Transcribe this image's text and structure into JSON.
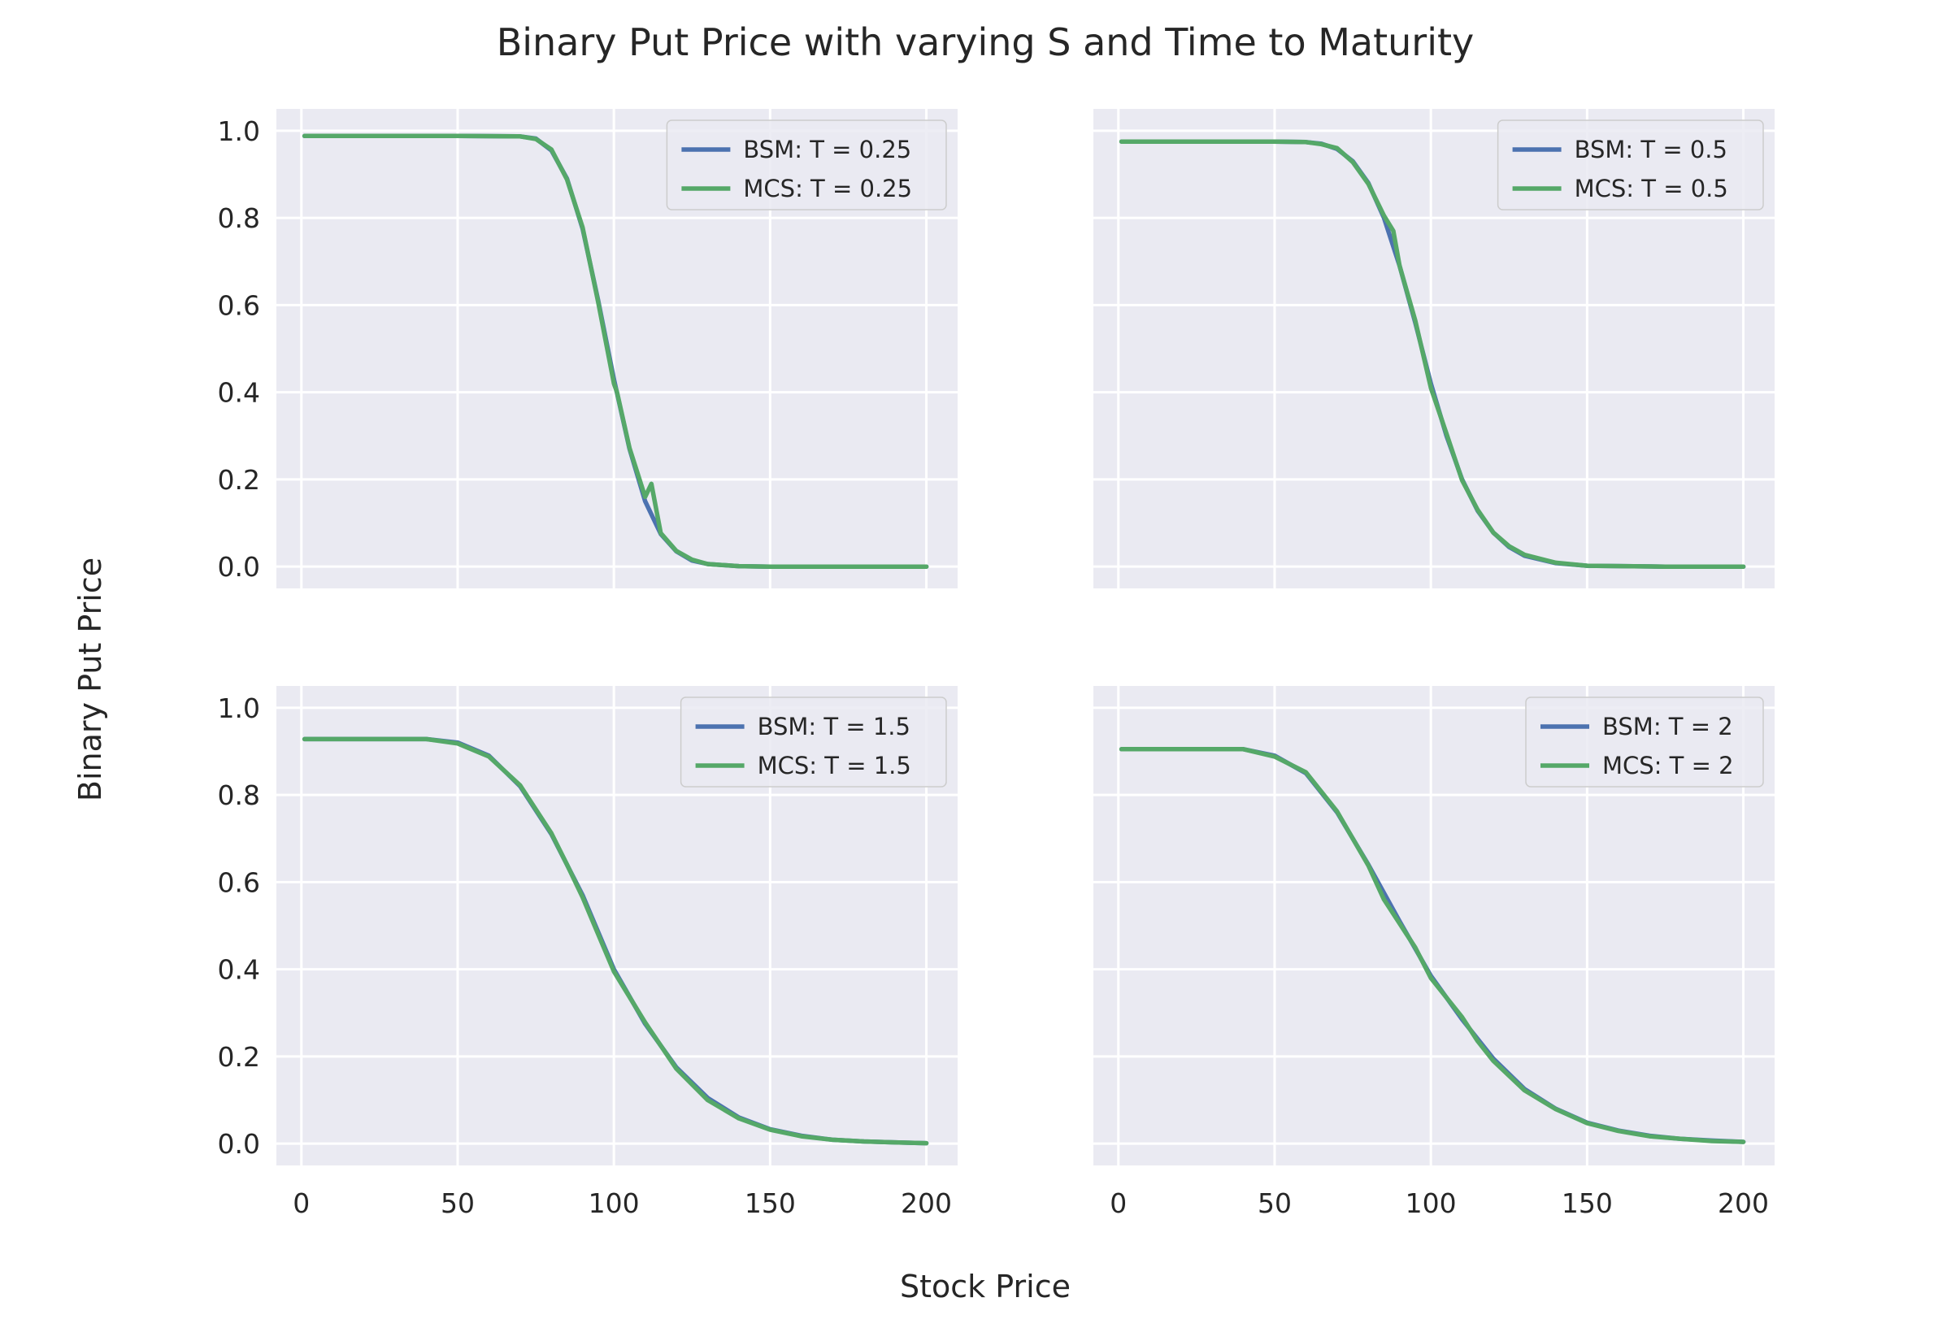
{
  "figure": {
    "title": "Binary Put Price with varying S and Time to Maturity",
    "xlabel": "Stock Price",
    "ylabel": "Binary Put Price"
  },
  "colors": {
    "bsm": "#4c72b0",
    "mcs": "#55a868",
    "axes_bg": "#eaeaf2",
    "grid": "#ffffff",
    "text": "#262626"
  },
  "chart_data": [
    {
      "type": "line",
      "panel": "top-left",
      "xlim": [
        -8,
        210
      ],
      "ylim": [
        -0.05,
        1.05
      ],
      "xticks": [
        0,
        50,
        100,
        150,
        200
      ],
      "yticks": [
        0.0,
        0.2,
        0.4,
        0.6,
        0.8,
        1.0
      ],
      "show_xtick_labels": false,
      "show_ytick_labels": true,
      "grid": true,
      "legend_position": "top-right",
      "series": [
        {
          "name": "BSM: T = 0.25",
          "x": [
            1,
            50,
            70,
            75,
            80,
            85,
            90,
            95,
            100,
            105,
            110,
            115,
            120,
            125,
            130,
            140,
            150,
            175,
            200
          ],
          "y": [
            0.988,
            0.988,
            0.987,
            0.982,
            0.955,
            0.89,
            0.775,
            0.61,
            0.43,
            0.27,
            0.15,
            0.075,
            0.035,
            0.014,
            0.006,
            0.001,
            0.0,
            0.0,
            0.0
          ]
        },
        {
          "name": "MCS: T = 0.25",
          "x": [
            1,
            50,
            70,
            75,
            80,
            85,
            90,
            95,
            100,
            101,
            105,
            110,
            112,
            115,
            120,
            125,
            130,
            140,
            150,
            175,
            200
          ],
          "y": [
            0.988,
            0.988,
            0.987,
            0.981,
            0.957,
            0.888,
            0.778,
            0.606,
            0.42,
            0.4,
            0.272,
            0.16,
            0.19,
            0.077,
            0.036,
            0.016,
            0.006,
            0.001,
            0.0,
            0.0,
            0.0
          ]
        }
      ]
    },
    {
      "type": "line",
      "panel": "top-right",
      "xlim": [
        -8,
        210
      ],
      "ylim": [
        -0.05,
        1.05
      ],
      "xticks": [
        0,
        50,
        100,
        150,
        200
      ],
      "yticks": [
        0.0,
        0.2,
        0.4,
        0.6,
        0.8,
        1.0
      ],
      "show_xtick_labels": false,
      "show_ytick_labels": false,
      "grid": true,
      "legend_position": "top-right",
      "series": [
        {
          "name": "BSM: T = 0.5",
          "x": [
            1,
            50,
            60,
            65,
            70,
            75,
            80,
            85,
            90,
            95,
            100,
            105,
            110,
            115,
            120,
            125,
            130,
            140,
            150,
            175,
            200
          ],
          "y": [
            0.975,
            0.975,
            0.974,
            0.97,
            0.958,
            0.93,
            0.88,
            0.8,
            0.69,
            0.56,
            0.42,
            0.3,
            0.2,
            0.128,
            0.078,
            0.045,
            0.025,
            0.008,
            0.002,
            0.0,
            0.0
          ]
        },
        {
          "name": "MCS: T = 0.5",
          "x": [
            1,
            50,
            60,
            65,
            70,
            75,
            80,
            85,
            88,
            90,
            95,
            100,
            105,
            110,
            115,
            120,
            125,
            130,
            140,
            150,
            175,
            200
          ],
          "y": [
            0.975,
            0.975,
            0.974,
            0.969,
            0.96,
            0.928,
            0.878,
            0.805,
            0.77,
            0.69,
            0.565,
            0.41,
            0.305,
            0.198,
            0.13,
            0.078,
            0.047,
            0.027,
            0.009,
            0.002,
            0.0,
            0.0
          ]
        }
      ]
    },
    {
      "type": "line",
      "panel": "bottom-left",
      "xlim": [
        -8,
        210
      ],
      "ylim": [
        -0.05,
        1.05
      ],
      "xticks": [
        0,
        50,
        100,
        150,
        200
      ],
      "yticks": [
        0.0,
        0.2,
        0.4,
        0.6,
        0.8,
        1.0
      ],
      "show_xtick_labels": true,
      "show_ytick_labels": true,
      "grid": true,
      "legend_position": "top-right",
      "series": [
        {
          "name": "BSM: T = 1.5",
          "x": [
            1,
            40,
            50,
            60,
            70,
            80,
            90,
            100,
            110,
            120,
            130,
            140,
            150,
            160,
            170,
            180,
            190,
            200
          ],
          "y": [
            0.928,
            0.928,
            0.92,
            0.89,
            0.82,
            0.71,
            0.57,
            0.4,
            0.275,
            0.175,
            0.105,
            0.06,
            0.033,
            0.018,
            0.009,
            0.005,
            0.003,
            0.001
          ]
        },
        {
          "name": "MCS: T = 1.5",
          "x": [
            1,
            40,
            50,
            60,
            70,
            80,
            85,
            90,
            95,
            100,
            110,
            120,
            130,
            140,
            150,
            160,
            170,
            180,
            190,
            200
          ],
          "y": [
            0.928,
            0.928,
            0.918,
            0.888,
            0.822,
            0.712,
            0.64,
            0.565,
            0.48,
            0.395,
            0.278,
            0.172,
            0.1,
            0.058,
            0.032,
            0.017,
            0.009,
            0.005,
            0.003,
            0.001
          ]
        }
      ]
    },
    {
      "type": "line",
      "panel": "bottom-right",
      "xlim": [
        -8,
        210
      ],
      "ylim": [
        -0.05,
        1.05
      ],
      "xticks": [
        0,
        50,
        100,
        150,
        200
      ],
      "yticks": [
        0.0,
        0.2,
        0.4,
        0.6,
        0.8,
        1.0
      ],
      "show_xtick_labels": true,
      "show_ytick_labels": false,
      "grid": true,
      "legend_position": "top-right",
      "series": [
        {
          "name": "BSM: T = 2",
          "x": [
            1,
            40,
            50,
            60,
            70,
            80,
            90,
            100,
            110,
            120,
            130,
            140,
            150,
            160,
            170,
            180,
            190,
            200
          ],
          "y": [
            0.905,
            0.905,
            0.89,
            0.85,
            0.76,
            0.64,
            0.51,
            0.385,
            0.285,
            0.195,
            0.125,
            0.08,
            0.048,
            0.03,
            0.018,
            0.011,
            0.007,
            0.004
          ]
        },
        {
          "name": "MCS: T = 2",
          "x": [
            1,
            40,
            50,
            60,
            70,
            80,
            85,
            90,
            95,
            100,
            110,
            115,
            120,
            130,
            140,
            150,
            160,
            170,
            180,
            190,
            200
          ],
          "y": [
            0.905,
            0.905,
            0.888,
            0.852,
            0.762,
            0.638,
            0.56,
            0.505,
            0.45,
            0.38,
            0.29,
            0.235,
            0.19,
            0.122,
            0.079,
            0.047,
            0.029,
            0.017,
            0.011,
            0.006,
            0.004
          ]
        }
      ]
    }
  ]
}
